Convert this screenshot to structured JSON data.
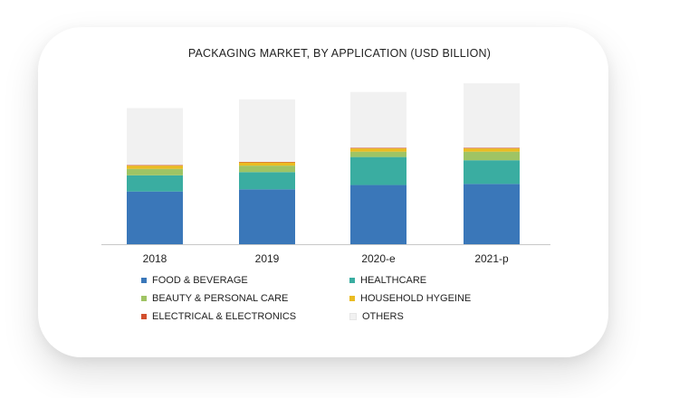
{
  "chart_data": {
    "type": "bar",
    "stacked": true,
    "title": "PACKAGING MARKET, BY APPLICATION (USD BILLION)",
    "xlabel": "",
    "ylabel": "",
    "categories": [
      "2018",
      "2019",
      "2020-e",
      "2021-p"
    ],
    "grid": false,
    "legend_position": "bottom",
    "series": [
      {
        "name": "FOOD & BEVERAGE",
        "color": "#3a77b9",
        "values": [
          49,
          51,
          55,
          56
        ]
      },
      {
        "name": "HEALTHCARE",
        "color": "#3aada1",
        "values": [
          15,
          16,
          26,
          22
        ]
      },
      {
        "name": "BEAUTY & PERSONAL CARE",
        "color": "#9fc464",
        "values": [
          6,
          6,
          5,
          8
        ]
      },
      {
        "name": "HOUSEHOLD HYGEINE",
        "color": "#eabc22",
        "values": [
          3,
          3,
          3,
          3
        ]
      },
      {
        "name": "ELECTRICAL & ELECTRONICS",
        "color": "#d24f2d",
        "values": [
          0.5,
          0.5,
          0.5,
          0.5
        ]
      },
      {
        "name": "OTHERS",
        "color": "#f1f1f1",
        "values": [
          53,
          58,
          52,
          60
        ]
      }
    ]
  }
}
